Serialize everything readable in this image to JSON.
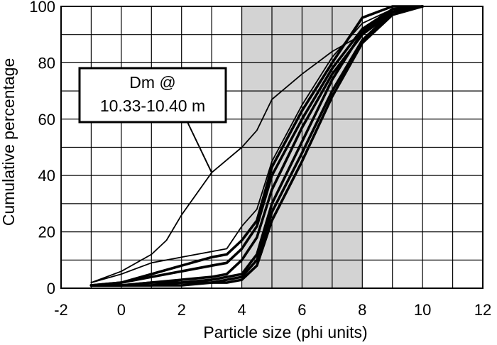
{
  "chart_data": {
    "type": "line",
    "xlabel": "Particle size (phi units)",
    "ylabel": "Cumulative percentage",
    "xlim": [
      -2,
      12
    ],
    "ylim": [
      0,
      100
    ],
    "x_ticks": [
      "-2",
      "0",
      "2",
      "4",
      "6",
      "8",
      "10",
      "12"
    ],
    "y_ticks": [
      "0",
      "20",
      "40",
      "60",
      "80",
      "100"
    ],
    "x_grid_step": 1,
    "y_grid_step": 10,
    "grid": true,
    "legend": "none",
    "shaded_band": {
      "x_start": 4,
      "x_end": 8,
      "color": "#d3d3d3"
    },
    "annotation": {
      "lines": [
        "Dm @",
        "10.33-10.40 m"
      ],
      "points_to": {
        "x": 3,
        "y": 41
      }
    },
    "series": [
      {
        "style": "thin",
        "x": [
          -1,
          0,
          1,
          1.5,
          2,
          3,
          4,
          4.5,
          5,
          6,
          7,
          8,
          9,
          10
        ],
        "y": [
          2,
          6,
          12,
          17,
          26,
          41,
          50,
          56,
          67,
          76,
          84,
          90,
          98,
          100
        ]
      },
      {
        "style": "thin",
        "x": [
          -1,
          0,
          1,
          2,
          3,
          3.5,
          4,
          4.5,
          5,
          6,
          7,
          8,
          9,
          10
        ],
        "y": [
          2,
          5,
          9,
          11,
          13,
          14,
          22,
          28,
          45,
          65,
          82,
          94,
          99,
          100
        ]
      },
      {
        "style": "thick",
        "x": [
          -1,
          0,
          1,
          2,
          3,
          3.5,
          4,
          4.5,
          5,
          6,
          7,
          8,
          9,
          10
        ],
        "y": [
          1,
          2,
          5,
          8,
          11,
          12,
          17,
          24,
          43,
          63,
          80,
          96,
          100,
          100
        ]
      },
      {
        "style": "thick",
        "x": [
          -1,
          0,
          1,
          2,
          3,
          3.5,
          4,
          4.5,
          5,
          6,
          7,
          8,
          9,
          10
        ],
        "y": [
          1,
          2,
          4,
          6,
          8,
          9,
          14,
          22,
          40,
          60,
          78,
          92,
          99,
          100
        ]
      },
      {
        "style": "thick",
        "x": [
          -1,
          0,
          1,
          2,
          3,
          3.5,
          4,
          4.5,
          5,
          6,
          7,
          8,
          9,
          10
        ],
        "y": [
          1,
          1,
          2,
          3,
          4,
          5,
          10,
          18,
          35,
          57,
          76,
          90,
          98,
          100
        ]
      },
      {
        "style": "thick",
        "x": [
          -1,
          0,
          1,
          2,
          3,
          3.5,
          4,
          4.5,
          5,
          6,
          7,
          8,
          9,
          10
        ],
        "y": [
          1,
          1,
          2,
          2,
          3,
          4,
          5,
          12,
          30,
          52,
          74,
          91,
          99,
          100
        ]
      },
      {
        "style": "thick",
        "x": [
          -1,
          0,
          1,
          2,
          3,
          3.5,
          4,
          4.5,
          5,
          6,
          7,
          8,
          9,
          10
        ],
        "y": [
          1,
          1,
          1,
          2,
          2,
          3,
          4,
          10,
          27,
          48,
          70,
          88,
          98,
          100
        ]
      },
      {
        "style": "thick",
        "x": [
          -1,
          0,
          1,
          2,
          3,
          3.5,
          4,
          4.5,
          5,
          6,
          7,
          8,
          9,
          10
        ],
        "y": [
          1,
          1,
          1,
          1,
          2,
          2,
          3,
          8,
          24,
          45,
          68,
          87,
          97,
          100
        ]
      }
    ]
  }
}
